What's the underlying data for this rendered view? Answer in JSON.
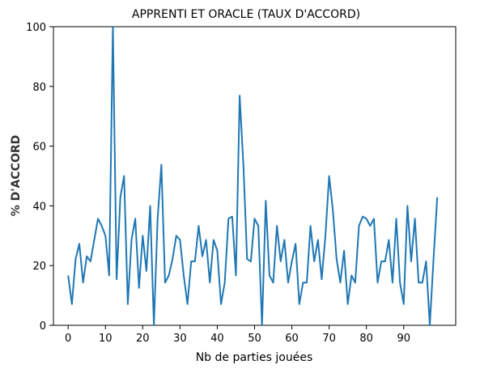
{
  "chart_data": {
    "type": "line",
    "title": "APPRENTI ET ORACLE (TAUX D'ACCORD)",
    "xlabel": "Nb de parties jouées",
    "ylabel": "% D'ACCORD",
    "xlim": [
      -3.95,
      103.95
    ],
    "ylim": [
      0,
      100
    ],
    "xticks": [
      0,
      10,
      20,
      30,
      40,
      50,
      60,
      70,
      80,
      90
    ],
    "yticks": [
      0,
      20,
      40,
      60,
      80,
      100
    ],
    "grid": false,
    "color": "#1f77b4",
    "x": [
      0,
      1,
      2,
      3,
      4,
      5,
      6,
      7,
      8,
      9,
      10,
      11,
      12,
      13,
      14,
      15,
      16,
      17,
      18,
      19,
      20,
      21,
      22,
      23,
      24,
      25,
      26,
      27,
      28,
      29,
      30,
      31,
      32,
      33,
      34,
      35,
      36,
      37,
      38,
      39,
      40,
      41,
      42,
      43,
      44,
      45,
      46,
      47,
      48,
      49,
      50,
      51,
      52,
      53,
      54,
      55,
      56,
      57,
      58,
      59,
      60,
      61,
      62,
      63,
      64,
      65,
      66,
      67,
      68,
      69,
      70,
      71,
      72,
      73,
      74,
      75,
      76,
      77,
      78,
      79,
      80,
      81,
      82,
      83,
      84,
      85,
      86,
      87,
      88,
      89,
      90,
      91,
      92,
      93,
      94,
      95,
      96,
      97,
      98,
      99
    ],
    "y": [
      16.7,
      7.1,
      22.2,
      27.3,
      14.3,
      23.1,
      21.4,
      28.6,
      35.7,
      33.3,
      30.0,
      16.7,
      100.0,
      15.4,
      42.9,
      50.0,
      7.1,
      28.6,
      35.7,
      12.5,
      30.0,
      18.2,
      40.0,
      0.0,
      35.7,
      53.8,
      14.3,
      16.7,
      22.2,
      30.0,
      28.6,
      16.7,
      7.1,
      21.4,
      21.4,
      33.3,
      23.1,
      28.6,
      14.3,
      28.6,
      25.0,
      7.1,
      14.3,
      35.7,
      36.4,
      16.7,
      76.9,
      53.8,
      22.2,
      21.4,
      35.7,
      33.3,
      0.0,
      41.7,
      16.7,
      14.3,
      33.3,
      21.4,
      28.6,
      14.3,
      21.4,
      27.3,
      7.1,
      14.3,
      14.3,
      33.3,
      21.4,
      28.6,
      15.4,
      30.0,
      50.0,
      38.5,
      22.2,
      14.3,
      25.0,
      7.1,
      16.7,
      14.3,
      33.3,
      36.4,
      35.7,
      33.3,
      35.7,
      14.3,
      21.4,
      21.4,
      28.6,
      14.3,
      35.7,
      14.3,
      7.1,
      40.0,
      21.4,
      35.7,
      14.3,
      14.3,
      21.4,
      0.0,
      22.2,
      42.9
    ]
  }
}
